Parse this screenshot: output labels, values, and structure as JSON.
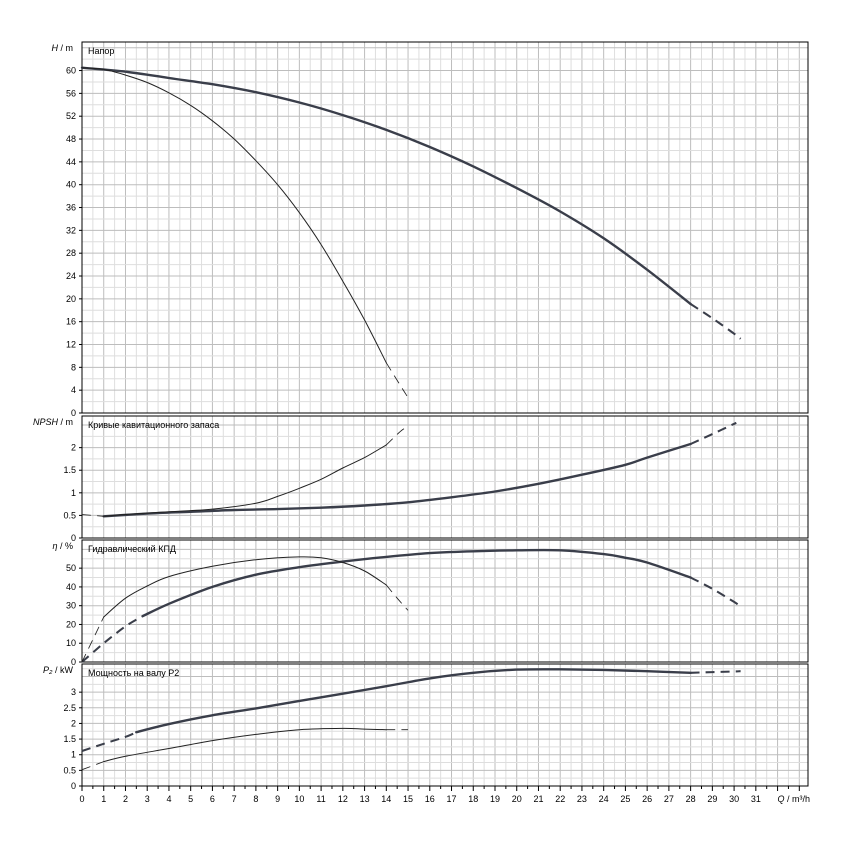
{
  "chart_data": [
    {
      "type": "line",
      "title": "Напор",
      "ylabel_var": "H",
      "ylabel_unit": "m",
      "ylim": [
        0,
        65
      ],
      "yticks": [
        "0",
        "4",
        "8",
        "12",
        "16",
        "20",
        "24",
        "28",
        "32",
        "36",
        "40",
        "44",
        "48",
        "52",
        "56",
        "60"
      ],
      "grid": true,
      "series": [
        {
          "style": "thick",
          "solid": [
            [
              0,
              60.5
            ],
            [
              2,
              59.8
            ],
            [
              4,
              58.7
            ],
            [
              6,
              57.6
            ],
            [
              8,
              56.2
            ],
            [
              10,
              54.4
            ],
            [
              12,
              52.2
            ],
            [
              14,
              49.6
            ],
            [
              16,
              46.6
            ],
            [
              18,
              43.2
            ],
            [
              20,
              39.4
            ],
            [
              22,
              35.3
            ],
            [
              24,
              30.6
            ],
            [
              26,
              25.1
            ],
            [
              28,
              19.1
            ]
          ],
          "dashed": [
            [
              28,
              19.1
            ],
            [
              29,
              16.6
            ],
            [
              30,
              13.9
            ],
            [
              30.3,
              13
            ]
          ]
        },
        {
          "style": "thin",
          "solid": [
            [
              0,
              60.5
            ],
            [
              1,
              60.2
            ],
            [
              2,
              59.2
            ],
            [
              3,
              57.9
            ],
            [
              4,
              56.1
            ],
            [
              5,
              53.9
            ],
            [
              6,
              51.2
            ],
            [
              7,
              48.0
            ],
            [
              8,
              44.2
            ],
            [
              9,
              40.0
            ],
            [
              10,
              35.1
            ],
            [
              11,
              29.5
            ],
            [
              12,
              23.1
            ],
            [
              13,
              16.3
            ],
            [
              14,
              8.8
            ]
          ],
          "dashed": [
            [
              14,
              8.8
            ],
            [
              14.7,
              4.5
            ],
            [
              15,
              2.7
            ]
          ]
        }
      ]
    },
    {
      "type": "line",
      "title": "Кривые кавитационного запаса",
      "ylabel_var": "NPSH",
      "ylabel_unit": "m",
      "ylim": [
        0,
        2.7
      ],
      "yticks": [
        "0",
        "0.5",
        "1",
        "1.5",
        "2"
      ],
      "grid": true,
      "series": [
        {
          "style": "thick",
          "solid": [
            [
              1,
              0.48
            ],
            [
              3,
              0.54
            ],
            [
              5,
              0.58
            ],
            [
              7,
              0.62
            ],
            [
              9,
              0.64
            ],
            [
              11,
              0.67
            ],
            [
              13,
              0.72
            ],
            [
              15,
              0.79
            ],
            [
              17,
              0.9
            ],
            [
              19,
              1.03
            ],
            [
              21,
              1.2
            ],
            [
              23,
              1.4
            ],
            [
              25,
              1.62
            ],
            [
              26,
              1.78
            ],
            [
              28,
              2.08
            ]
          ],
          "dashed": [
            [
              28,
              2.08
            ],
            [
              29,
              2.3
            ],
            [
              30.1,
              2.55
            ]
          ]
        },
        {
          "style": "thin",
          "solid": [
            [
              1,
              0.48
            ],
            [
              2,
              0.52
            ],
            [
              4,
              0.58
            ],
            [
              6,
              0.64
            ],
            [
              8,
              0.77
            ],
            [
              9,
              0.92
            ],
            [
              10,
              1.1
            ],
            [
              11,
              1.3
            ],
            [
              12,
              1.55
            ],
            [
              13,
              1.78
            ],
            [
              14,
              2.06
            ]
          ],
          "dashed": [
            [
              14,
              2.06
            ],
            [
              14.7,
              2.38
            ],
            [
              15,
              2.45
            ]
          ]
        },
        {
          "style": "thin",
          "solid": [],
          "dashed": [
            [
              0,
              0.52
            ],
            [
              1,
              0.48
            ]
          ]
        }
      ]
    },
    {
      "type": "line",
      "title": "Гидравлический КПД",
      "ylabel_var": "η",
      "ylabel_unit": "%",
      "ylim": [
        0,
        65
      ],
      "yticks": [
        "0",
        "10",
        "20",
        "30",
        "40",
        "50"
      ],
      "grid": true,
      "series": [
        {
          "style": "thick",
          "solid": [
            [
              2.8,
              24.5
            ],
            [
              4,
              31
            ],
            [
              6,
              40
            ],
            [
              8,
              46.5
            ],
            [
              10,
              50.5
            ],
            [
              12,
              53.5
            ],
            [
              14,
              56
            ],
            [
              16,
              58
            ],
            [
              18,
              59
            ],
            [
              20,
              59.5
            ],
            [
              22,
              59.5
            ],
            [
              24,
              57.5
            ],
            [
              25,
              55.5
            ],
            [
              26,
              53
            ],
            [
              28,
              45
            ]
          ],
          "dashed": [
            [
              0,
              0
            ],
            [
              1,
              10
            ],
            [
              2,
              19
            ],
            [
              2.8,
              24.5
            ]
          ]
        },
        {
          "style": "thick",
          "solid": [],
          "dashed": [
            [
              28,
              45
            ],
            [
              29,
              39
            ],
            [
              30,
              32
            ],
            [
              30.3,
              29.5
            ]
          ]
        },
        {
          "style": "thin",
          "solid": [
            [
              1,
              24
            ],
            [
              2,
              34
            ],
            [
              3,
              40.5
            ],
            [
              4,
              45.5
            ],
            [
              6,
              51
            ],
            [
              8,
              54.5
            ],
            [
              10,
              56
            ],
            [
              11,
              55.5
            ],
            [
              12,
              53
            ],
            [
              13,
              48.5
            ],
            [
              14,
              41
            ]
          ],
          "dashed": [
            [
              0,
              0
            ],
            [
              0.5,
              12
            ],
            [
              1,
              24
            ]
          ]
        },
        {
          "style": "thin",
          "solid": [],
          "dashed": [
            [
              14,
              41
            ],
            [
              14.5,
              34
            ],
            [
              15,
              27.5
            ]
          ]
        }
      ]
    },
    {
      "type": "line",
      "title": "Мощность на валу P2",
      "ylabel_var": "P₂",
      "ylabel_unit": "kW",
      "ylim": [
        0,
        3.9
      ],
      "yticks": [
        "0",
        "0.5",
        "1",
        "1.5",
        "2",
        "2.5",
        "3"
      ],
      "xlabel_var": "Q",
      "xlabel_unit": "m³/h",
      "xlim": [
        0,
        33.4
      ],
      "xticks": [
        "0",
        "1",
        "2",
        "3",
        "4",
        "5",
        "6",
        "7",
        "8",
        "9",
        "10",
        "11",
        "12",
        "13",
        "14",
        "15",
        "16",
        "17",
        "18",
        "19",
        "20",
        "21",
        "22",
        "23",
        "24",
        "25",
        "26",
        "27",
        "28",
        "29",
        "30",
        "31"
      ],
      "grid": true,
      "series": [
        {
          "style": "thick",
          "solid": [
            [
              2.5,
              1.72
            ],
            [
              4,
              1.98
            ],
            [
              6,
              2.26
            ],
            [
              8,
              2.48
            ],
            [
              10,
              2.72
            ],
            [
              12,
              2.95
            ],
            [
              14,
              3.19
            ],
            [
              16,
              3.44
            ],
            [
              18,
              3.62
            ],
            [
              20,
              3.72
            ],
            [
              22,
              3.73
            ],
            [
              24,
              3.71
            ],
            [
              26,
              3.67
            ],
            [
              28,
              3.62
            ]
          ],
          "dashed": [
            [
              0,
              1.12
            ],
            [
              1,
              1.35
            ],
            [
              2,
              1.57
            ],
            [
              2.5,
              1.72
            ]
          ]
        },
        {
          "style": "thick",
          "solid": [],
          "dashed": [
            [
              28,
              3.62
            ],
            [
              29,
              3.64
            ],
            [
              30,
              3.66
            ],
            [
              30.3,
              3.67
            ]
          ]
        },
        {
          "style": "thin",
          "solid": [
            [
              1,
              0.78
            ],
            [
              2,
              0.95
            ],
            [
              4,
              1.2
            ],
            [
              6,
              1.45
            ],
            [
              8,
              1.65
            ],
            [
              10,
              1.8
            ],
            [
              12,
              1.84
            ],
            [
              13,
              1.82
            ],
            [
              14,
              1.8
            ]
          ],
          "dashed": [
            [
              0,
              0.52
            ],
            [
              1,
              0.78
            ]
          ]
        },
        {
          "style": "thin",
          "solid": [],
          "dashed": [
            [
              14,
              1.8
            ],
            [
              15,
              1.8
            ]
          ]
        }
      ]
    }
  ]
}
